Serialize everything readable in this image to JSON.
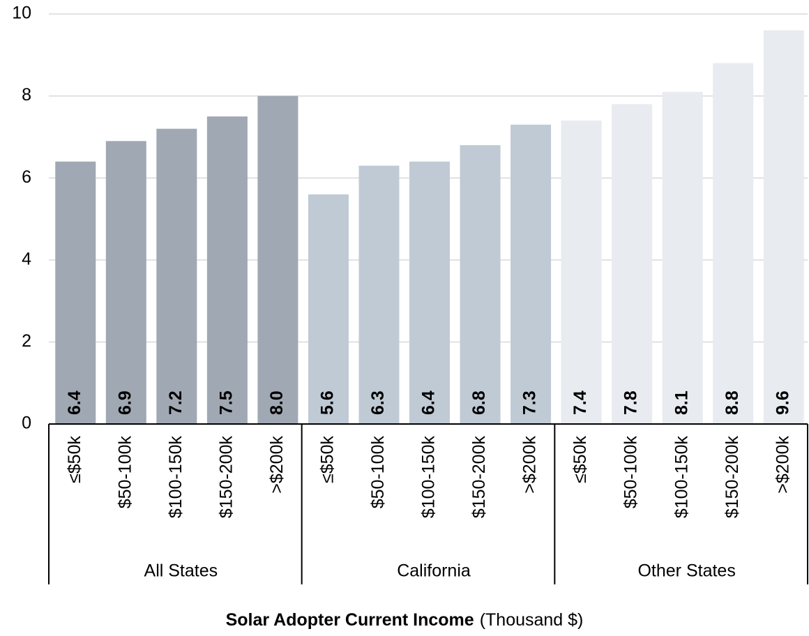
{
  "chart_data": {
    "type": "bar",
    "categories": [
      "≤$50k",
      "$50-100k",
      "$100-150k",
      "$150-200k",
      ">$200k"
    ],
    "series": [
      {
        "name": "All States",
        "color": "#a0a8b3",
        "values": [
          6.4,
          6.9,
          7.2,
          7.5,
          8.0
        ],
        "value_labels": [
          "6.4",
          "6.9",
          "7.2",
          "7.5",
          "8.0"
        ]
      },
      {
        "name": "California",
        "color": "#c0cad5",
        "values": [
          5.6,
          6.3,
          6.4,
          6.8,
          7.3
        ],
        "value_labels": [
          "5.6",
          "6.3",
          "6.4",
          "6.8",
          "7.3"
        ]
      },
      {
        "name": "Other States",
        "color": "#e8ebf0",
        "values": [
          7.4,
          7.8,
          8.1,
          8.8,
          9.6
        ],
        "value_labels": [
          "7.4",
          "7.8",
          "8.1",
          "8.8",
          "9.6"
        ]
      }
    ],
    "xlabel": "Solar Adopter Current Income",
    "xlabel_note": "(Thousand $)",
    "ylim": [
      0,
      10
    ],
    "yticks": [
      0,
      2,
      4,
      6,
      8,
      10
    ],
    "grid": true
  }
}
